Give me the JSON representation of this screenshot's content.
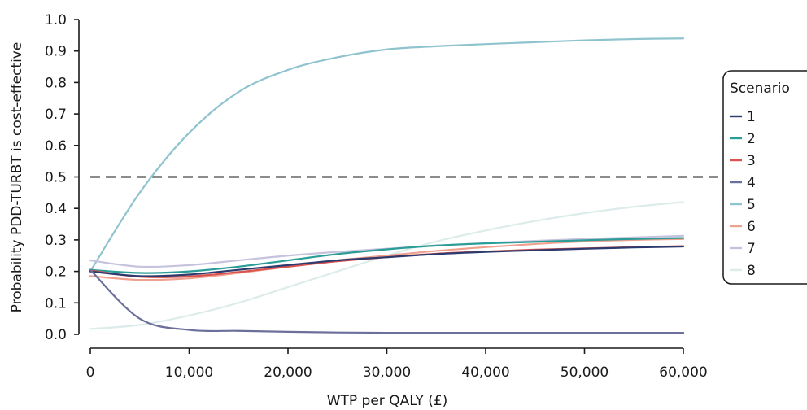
{
  "chart_data": {
    "type": "line",
    "xlabel": "WTP per QALY (£)",
    "ylabel": "Probability PDD-TURBT is cost-effective",
    "xlim": [
      0,
      60000
    ],
    "ylim": [
      0,
      1.0
    ],
    "x_ticks": [
      0,
      10000,
      20000,
      30000,
      40000,
      50000,
      60000
    ],
    "x_tick_labels": [
      "0",
      "10,000",
      "20,000",
      "30,000",
      "40,000",
      "50,000",
      "60,000"
    ],
    "y_ticks": [
      0.0,
      0.1,
      0.2,
      0.3,
      0.4,
      0.5,
      0.6,
      0.7,
      0.8,
      0.9,
      1.0
    ],
    "y_tick_labels": [
      "0.0",
      "0.1",
      "0.2",
      "0.3",
      "0.4",
      "0.5",
      "0.6",
      "0.7",
      "0.8",
      "0.9",
      "1.0"
    ],
    "grid": false,
    "reference_line": {
      "y": 0.5,
      "style": "dashed",
      "color": "#1a1a1a"
    },
    "legend": {
      "title": "Scenario",
      "placement": "right"
    },
    "x": [
      0,
      5000,
      10000,
      15000,
      20000,
      25000,
      30000,
      35000,
      40000,
      45000,
      50000,
      55000,
      60000
    ],
    "series": [
      {
        "name": "1",
        "color": "#2d3a6e",
        "values": [
          0.2,
          0.185,
          0.19,
          0.205,
          0.22,
          0.235,
          0.245,
          0.255,
          0.262,
          0.267,
          0.272,
          0.276,
          0.279
        ]
      },
      {
        "name": "2",
        "color": "#2a9d96",
        "values": [
          0.205,
          0.195,
          0.2,
          0.215,
          0.235,
          0.255,
          0.27,
          0.282,
          0.289,
          0.294,
          0.299,
          0.303,
          0.306
        ]
      },
      {
        "name": "3",
        "color": "#d9534f",
        "values": [
          0.203,
          0.183,
          0.184,
          0.198,
          0.215,
          0.232,
          0.245,
          0.256,
          0.263,
          0.269,
          0.273,
          0.277,
          0.28
        ]
      },
      {
        "name": "4",
        "color": "#6b6f99",
        "values": [
          0.205,
          0.05,
          0.014,
          0.011,
          0.008,
          0.006,
          0.005,
          0.005,
          0.005,
          0.005,
          0.005,
          0.005,
          0.005
        ]
      },
      {
        "name": "5",
        "color": "#8fc4cf",
        "values": [
          0.2,
          0.45,
          0.64,
          0.77,
          0.84,
          0.88,
          0.905,
          0.915,
          0.922,
          0.928,
          0.934,
          0.938,
          0.94
        ]
      },
      {
        "name": "6",
        "color": "#f0a08e",
        "values": [
          0.185,
          0.173,
          0.178,
          0.195,
          0.215,
          0.235,
          0.25,
          0.265,
          0.277,
          0.287,
          0.295,
          0.3,
          0.303
        ]
      },
      {
        "name": "7",
        "color": "#c6c3de",
        "values": [
          0.235,
          0.215,
          0.22,
          0.235,
          0.25,
          0.262,
          0.272,
          0.282,
          0.29,
          0.297,
          0.303,
          0.308,
          0.313
        ]
      },
      {
        "name": "8",
        "color": "#dcecea",
        "values": [
          0.017,
          0.03,
          0.06,
          0.1,
          0.15,
          0.2,
          0.25,
          0.295,
          0.33,
          0.36,
          0.385,
          0.405,
          0.42
        ]
      }
    ]
  }
}
